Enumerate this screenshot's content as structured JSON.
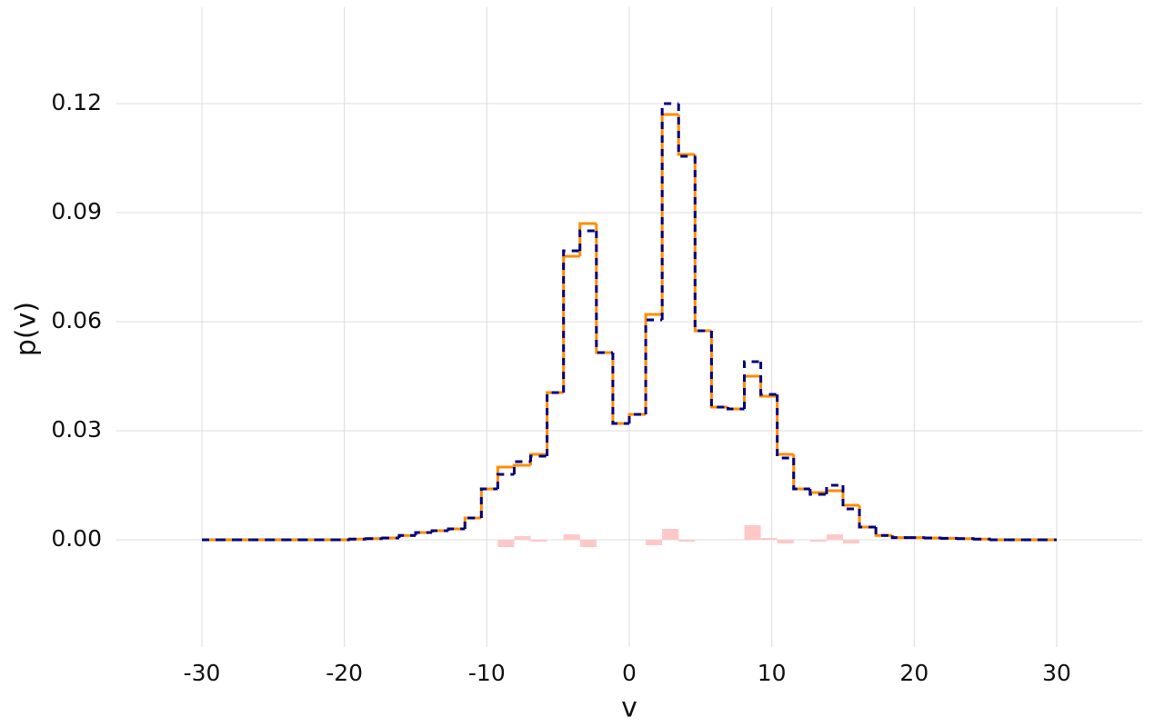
{
  "chart_data": {
    "type": "histogram",
    "x_label": "v",
    "y_label": "p(v)",
    "bins": [
      -30,
      -28.846,
      -27.692,
      -26.538,
      -25.385,
      -24.231,
      -23.077,
      -21.923,
      -20.769,
      -19.615,
      -18.462,
      -17.308,
      -16.154,
      -15,
      -13.846,
      -12.692,
      -11.538,
      -10.385,
      -9.231,
      -8.077,
      -6.923,
      -5.769,
      -4.615,
      -3.462,
      -2.308,
      -1.154,
      0,
      1.154,
      2.308,
      3.462,
      4.615,
      5.769,
      6.923,
      8.077,
      9.231,
      10.385,
      11.538,
      12.692,
      13.846,
      15,
      16.154,
      17.308,
      18.462,
      19.615,
      20.769,
      21.923,
      23.077,
      24.231,
      25.385,
      26.538,
      27.692,
      28.846,
      30
    ],
    "series": [
      {
        "color": "#ff8c00",
        "style": "solid",
        "values": [
          0,
          0,
          0,
          0,
          0,
          0,
          0,
          0,
          0,
          0.0002,
          0.0003,
          0.0005,
          0.0012,
          0.002,
          0.0025,
          0.003,
          0.006,
          0.014,
          0.02,
          0.0205,
          0.0235,
          0.0405,
          0.078,
          0.087,
          0.0515,
          0.032,
          0.0345,
          0.062,
          0.117,
          0.106,
          0.0575,
          0.0365,
          0.036,
          0.045,
          0.0395,
          0.0235,
          0.014,
          0.013,
          0.0135,
          0.0095,
          0.0035,
          0.0012,
          0.0006,
          0.0006,
          0.0005,
          0.0004,
          0.0003,
          0.0002,
          0,
          0,
          0,
          0
        ]
      },
      {
        "color": "#000080",
        "style": "dashed",
        "values": [
          0,
          0,
          0,
          0,
          0,
          0,
          0,
          0,
          0,
          0.0002,
          0.0003,
          0.0005,
          0.0012,
          0.002,
          0.0025,
          0.003,
          0.006,
          0.014,
          0.018,
          0.0215,
          0.023,
          0.0405,
          0.0795,
          0.085,
          0.0515,
          0.032,
          0.0345,
          0.0605,
          0.12,
          0.1055,
          0.0575,
          0.0365,
          0.036,
          0.049,
          0.04,
          0.0225,
          0.014,
          0.0125,
          0.015,
          0.0085,
          0.0035,
          0.0012,
          0.0006,
          0.0006,
          0.0005,
          0.0004,
          0.0003,
          0.0002,
          0,
          0,
          0,
          0
        ]
      },
      {
        "color": "#ffc8c8",
        "style": "bars",
        "values": [
          0,
          0,
          0,
          0,
          0,
          0,
          0,
          0,
          0,
          0,
          0,
          0,
          0,
          0,
          0,
          0,
          0,
          0,
          -0.002,
          0.001,
          -0.0005,
          0,
          0.0015,
          -0.002,
          0,
          0,
          0,
          -0.0015,
          0.003,
          -0.0005,
          0,
          0,
          0,
          0.004,
          0.0005,
          -0.001,
          0,
          -0.0005,
          0.0015,
          -0.001,
          0,
          0,
          0,
          0,
          0,
          0,
          0,
          0,
          0,
          0,
          0,
          0
        ]
      }
    ],
    "xlim": [
      -36,
      36
    ],
    "ylim": [
      -0.0295,
      0.1465
    ],
    "xticks": [
      -30,
      -20,
      -10,
      0,
      10,
      20,
      30
    ],
    "yticks": [
      {
        "value": 0,
        "label": "0.00"
      },
      {
        "value": 0.03,
        "label": "0.03"
      },
      {
        "value": 0.06,
        "label": "0.06"
      },
      {
        "value": 0.09,
        "label": "0.09"
      },
      {
        "value": 0.12,
        "label": "0.12"
      }
    ],
    "grid": true
  }
}
